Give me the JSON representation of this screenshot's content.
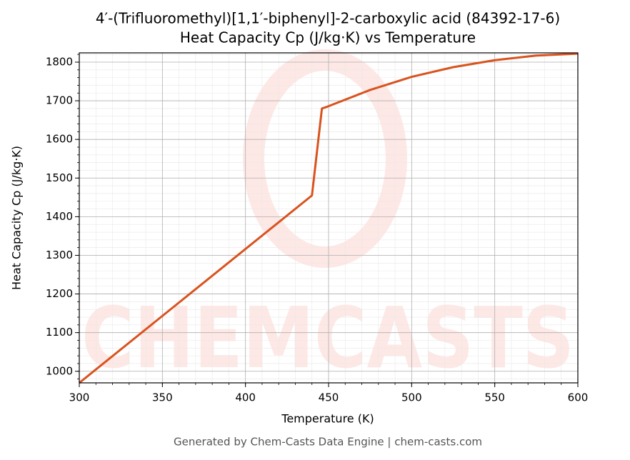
{
  "chart_data": {
    "type": "line",
    "title": "4′-(Trifluoromethyl)[1,1′-biphenyl]-2-carboxylic acid (84392-17-6)",
    "subtitle": "Heat Capacity Cp (J/kg·K) vs Temperature",
    "x_label": "Temperature (K)",
    "y_label": "Heat Capacity Cp (J/kg·K)",
    "watermark": "CHEMCASTS",
    "footer": "Generated by Chem-Casts Data Engine | chem-casts.com",
    "x": [
      300,
      440,
      446,
      450,
      475,
      500,
      525,
      550,
      575,
      600
    ],
    "series": [
      {
        "name": "Cp",
        "color": "#d9531e",
        "values": [
          970,
          1455,
          1680,
          1686,
          1728,
          1762,
          1787,
          1805,
          1817,
          1822
        ]
      }
    ],
    "xlim": [
      300,
      600
    ],
    "xticks": [
      300,
      350,
      400,
      450,
      500,
      550,
      600
    ],
    "ylim": [
      970,
      1824
    ],
    "yticks": [
      1000,
      1100,
      1200,
      1300,
      1400,
      1500,
      1600,
      1700,
      1800
    ],
    "grid": true,
    "minor_grid": true
  }
}
